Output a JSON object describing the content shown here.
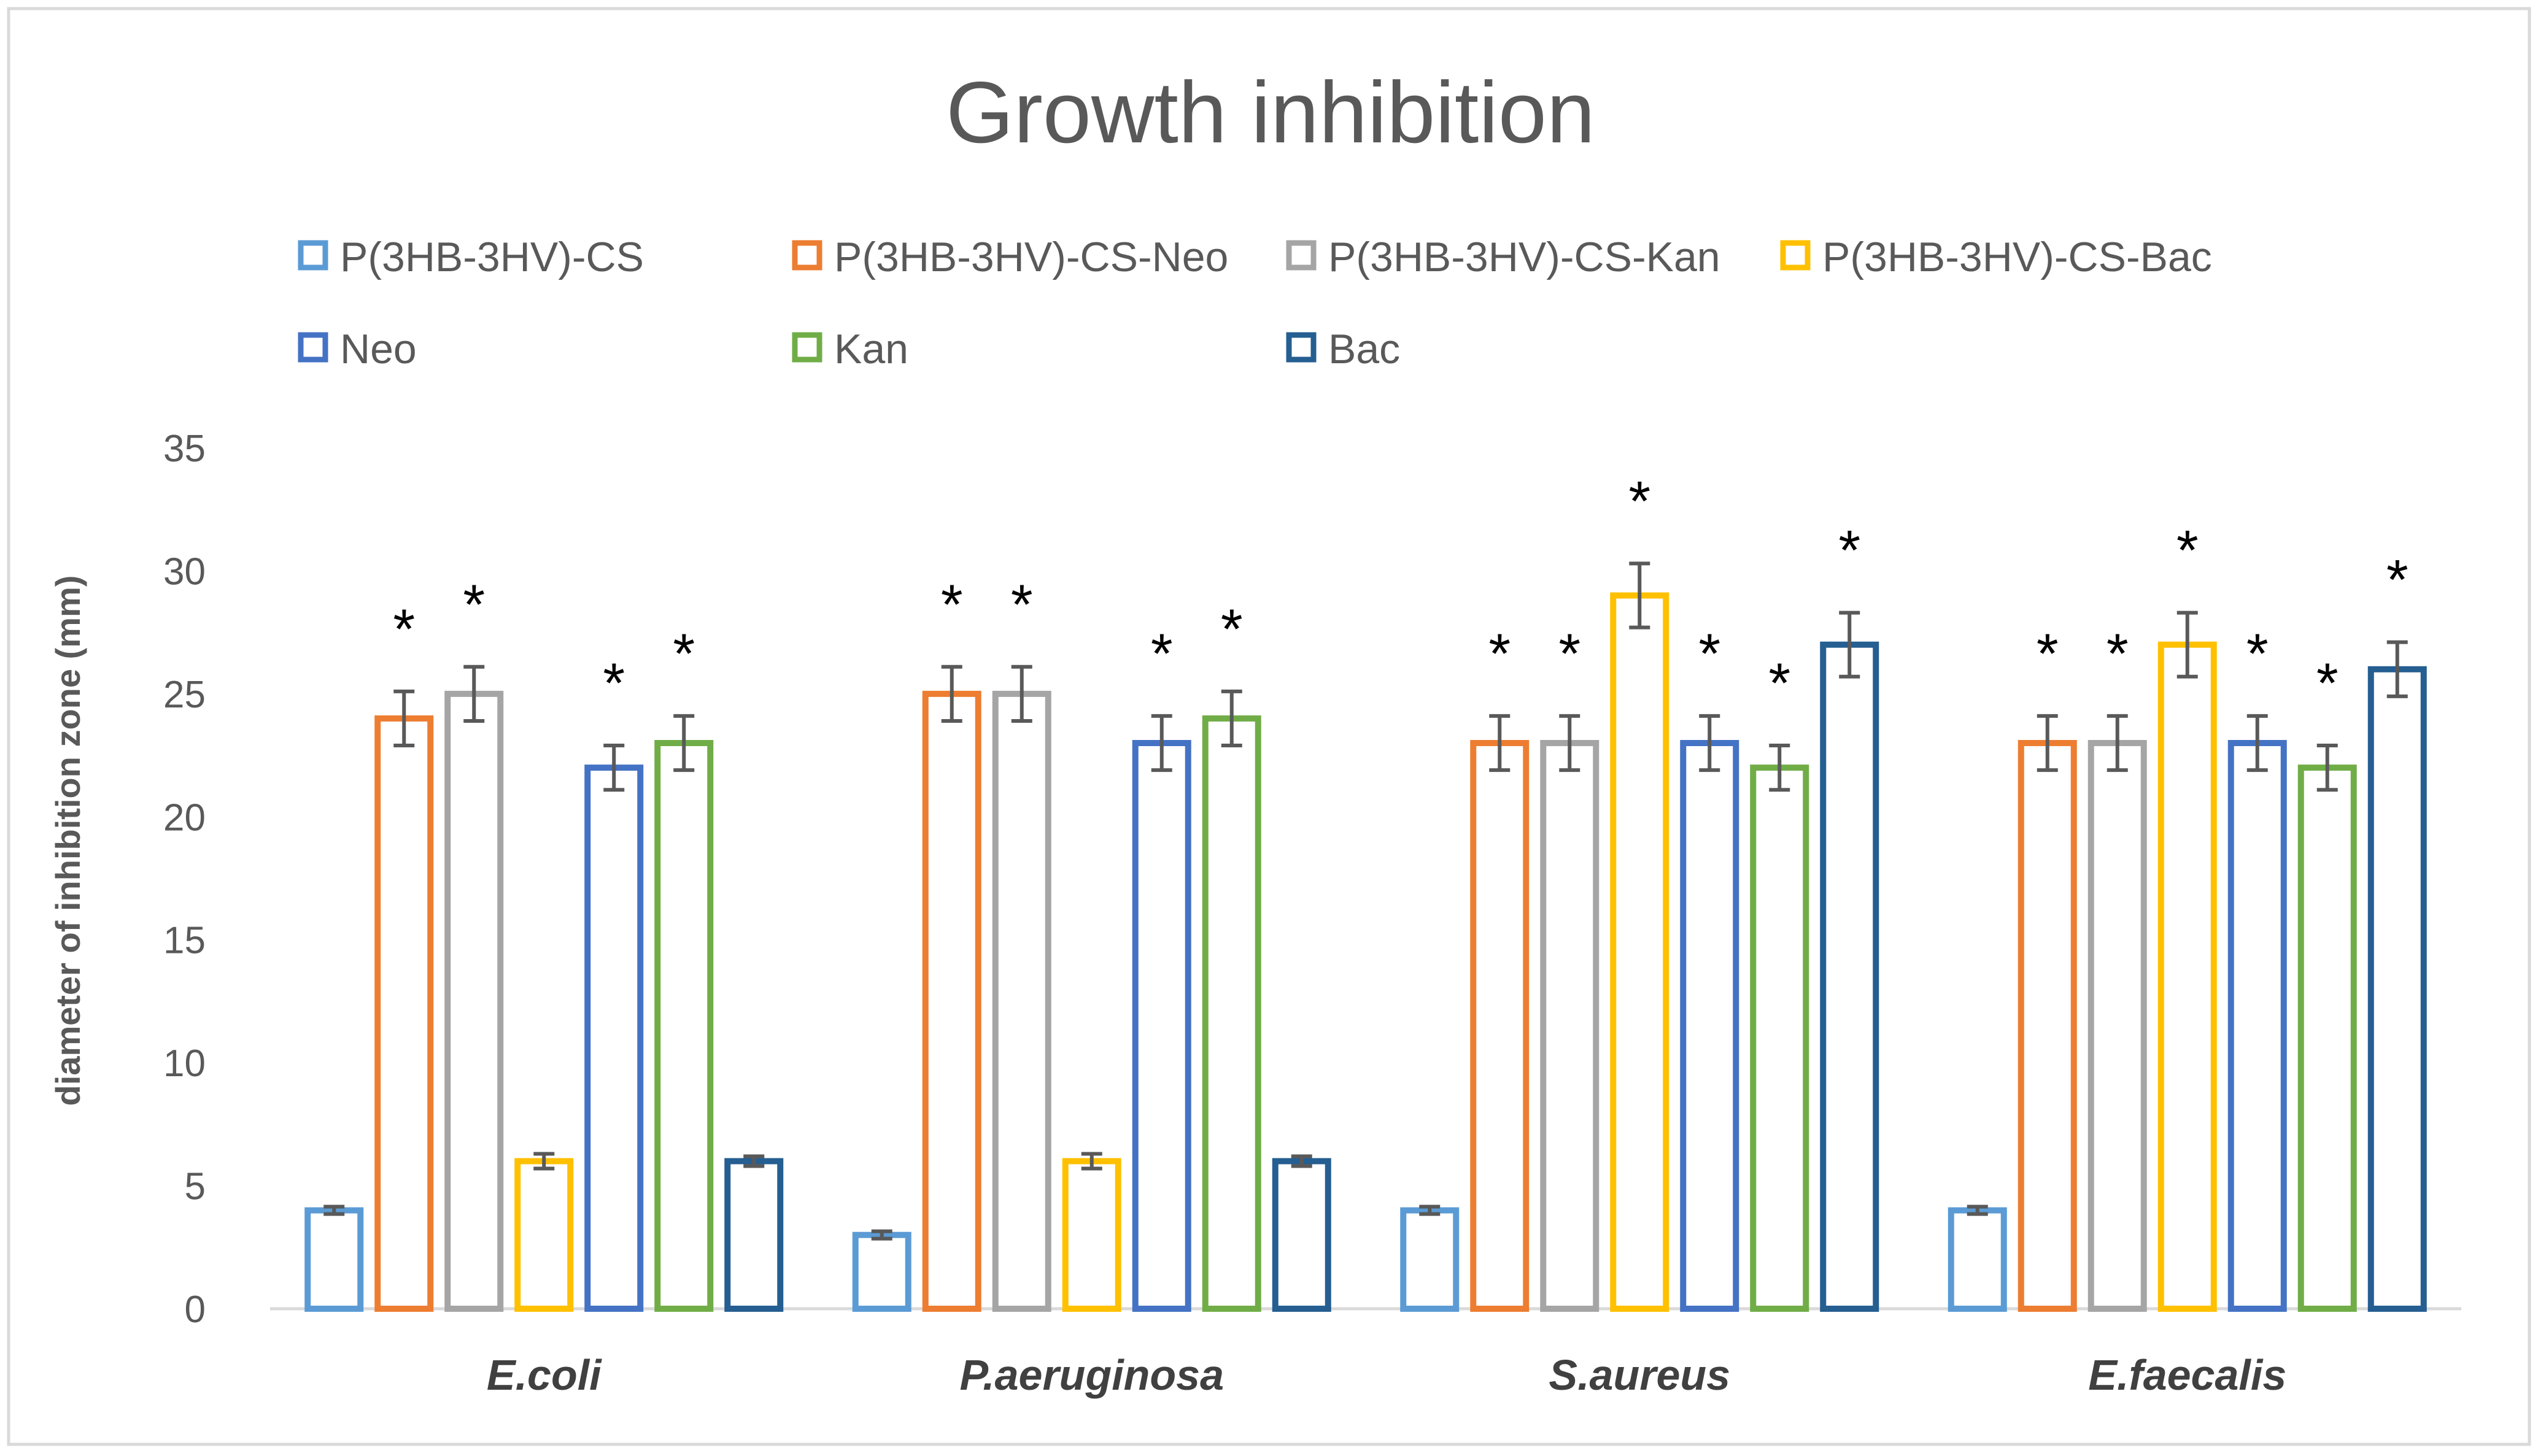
{
  "chart_data": {
    "type": "bar",
    "title": "Growth inhibition",
    "xlabel": "",
    "ylabel": "diameter of  inhibition zone (mm)",
    "ylim": [
      0,
      35
    ],
    "yticks": [
      0,
      5,
      10,
      15,
      20,
      25,
      30,
      35
    ],
    "grid": false,
    "legend_position": "top",
    "categories": [
      "E.coli",
      "P.aeruginosa",
      "S.aureus",
      "E.faecalis"
    ],
    "series": [
      {
        "name": "P(3HB-3HV)-CS",
        "color": "#5B9BD5",
        "values": [
          4,
          3,
          4,
          4
        ],
        "errors": [
          0.15,
          0.15,
          0.15,
          0.15
        ],
        "significant": [
          false,
          false,
          false,
          false
        ]
      },
      {
        "name": "P(3HB-3HV)-CS-Neo",
        "color": "#ED7D31",
        "values": [
          24,
          25,
          23,
          23
        ],
        "errors": [
          1.1,
          1.1,
          1.1,
          1.1
        ],
        "significant": [
          true,
          true,
          true,
          true
        ]
      },
      {
        "name": "P(3HB-3HV)-CS-Kan",
        "color": "#A5A5A5",
        "values": [
          25,
          25,
          23,
          23
        ],
        "errors": [
          1.1,
          1.1,
          1.1,
          1.1
        ],
        "significant": [
          true,
          true,
          true,
          true
        ]
      },
      {
        "name": "P(3HB-3HV)-CS-Bac",
        "color": "#FFC000",
        "values": [
          6,
          6,
          29,
          27
        ],
        "errors": [
          0.3,
          0.3,
          1.3,
          1.3
        ],
        "significant": [
          false,
          false,
          true,
          true
        ]
      },
      {
        "name": "Neo",
        "color": "#4472C4",
        "values": [
          22,
          23,
          23,
          23
        ],
        "errors": [
          0.9,
          1.1,
          1.1,
          1.1
        ],
        "significant": [
          true,
          true,
          true,
          true
        ]
      },
      {
        "name": "Kan",
        "color": "#70AD47",
        "values": [
          23,
          24,
          22,
          22
        ],
        "errors": [
          1.1,
          1.1,
          0.9,
          0.9
        ],
        "significant": [
          true,
          true,
          true,
          true
        ]
      },
      {
        "name": "Bac",
        "color": "#255E91",
        "values": [
          6,
          6,
          27,
          26
        ],
        "errors": [
          0.2,
          0.2,
          1.3,
          1.1
        ],
        "significant": [
          false,
          false,
          true,
          true
        ]
      }
    ],
    "significance_marker": "*"
  }
}
